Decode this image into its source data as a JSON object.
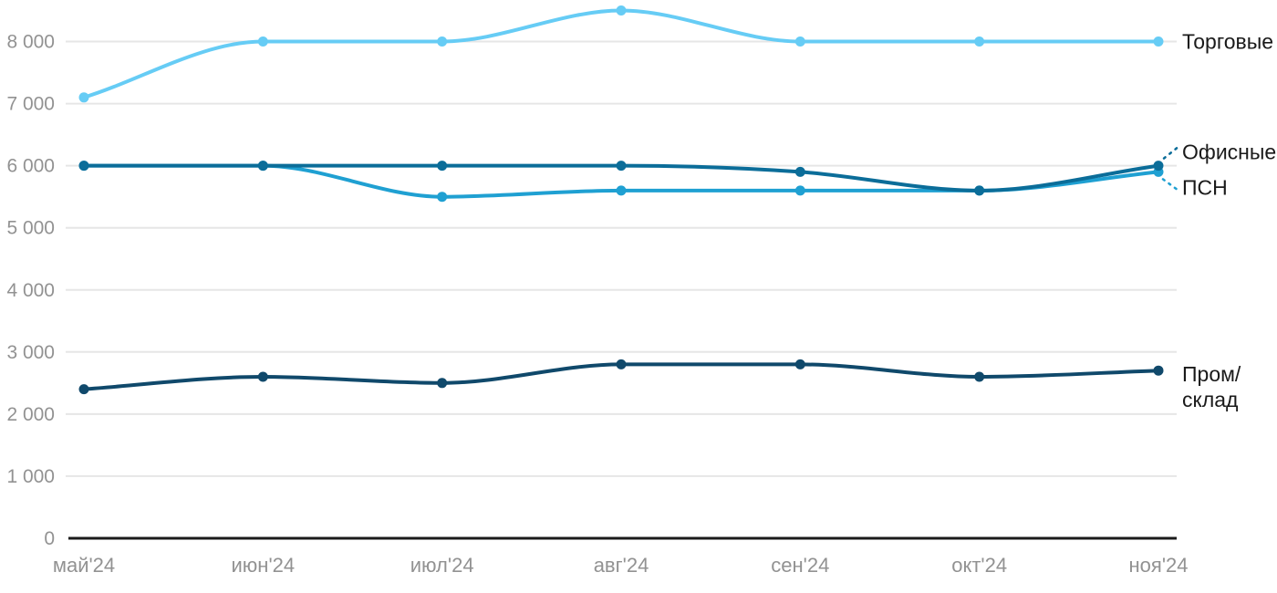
{
  "chart_data": {
    "type": "line",
    "title": "",
    "xlabel": "",
    "ylabel": "",
    "ylim": [
      0,
      8800
    ],
    "grid": true,
    "legend_position": "right-direct-labels",
    "categories": [
      "май'24",
      "июн'24",
      "июл'24",
      "авг'24",
      "сен'24",
      "окт'24",
      "ноя'24"
    ],
    "y_tick_values": [
      0,
      1000,
      2000,
      3000,
      4000,
      5000,
      6000,
      7000,
      8000
    ],
    "y_tick_labels": [
      "0",
      "1 000",
      "2 000",
      "3 000",
      "4 000",
      "5 000",
      "6 000",
      "7 000",
      "8 000"
    ],
    "series": [
      {
        "key": "torgovye",
        "name": "Торговые",
        "label_lines": [
          "Торговые"
        ],
        "color": "#66CCF5",
        "values": [
          7100,
          8000,
          8000,
          8500,
          8000,
          8000,
          8000
        ],
        "leader": "none",
        "label_dy": 0
      },
      {
        "key": "psn",
        "name": "ПСН",
        "label_lines": [
          "ПСН"
        ],
        "color": "#1FA0D2",
        "values": [
          6000,
          6000,
          5500,
          5600,
          5600,
          5600,
          5900
        ],
        "leader": "down",
        "label_dy": 17
      },
      {
        "key": "ofisnye",
        "name": "Офисные",
        "label_lines": [
          "Офисные"
        ],
        "color": "#0B6D99",
        "values": [
          6000,
          6000,
          6000,
          6000,
          5900,
          5600,
          6000
        ],
        "leader": "up",
        "label_dy": -15
      },
      {
        "key": "prom-sklad",
        "name": "Пром/склад",
        "label_lines": [
          "Пром/",
          "склад"
        ],
        "color": "#10496B",
        "values": [
          2400,
          2600,
          2500,
          2800,
          2800,
          2600,
          2700
        ],
        "leader": "none",
        "label_dy": 4
      }
    ],
    "colors": {
      "grid_line": "#E6E6E6",
      "axis_line": "#1A1A1A",
      "tick_text": "#929292",
      "series_label_text": "#1A1A1A",
      "background": "#FFFFFF"
    }
  }
}
